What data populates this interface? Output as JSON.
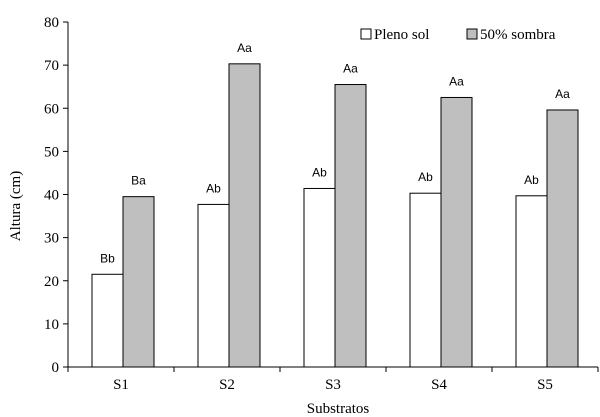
{
  "chart_data": {
    "type": "bar",
    "categories": [
      "S1",
      "S2",
      "S3",
      "S4",
      "S5"
    ],
    "series": [
      {
        "name": "Pleno sol",
        "values": [
          21.5,
          37.7,
          41.4,
          40.3,
          39.7
        ],
        "labels": [
          "Bb",
          "Ab",
          "Ab",
          "Ab",
          "Ab"
        ],
        "color": "#ffffff"
      },
      {
        "name": "50% sombra",
        "values": [
          39.5,
          70.3,
          65.5,
          62.5,
          59.6
        ],
        "labels": [
          "Ba",
          "Aa",
          "Aa",
          "Aa",
          "Aa"
        ],
        "color": "#bfbfbf"
      }
    ],
    "xlabel": "Substratos",
    "ylabel": "Altura (cm)",
    "ylim": [
      0,
      80
    ],
    "yticks": [
      0,
      10,
      20,
      30,
      40,
      50,
      60,
      70,
      80
    ],
    "grid": false,
    "legend_position": "top-right"
  }
}
